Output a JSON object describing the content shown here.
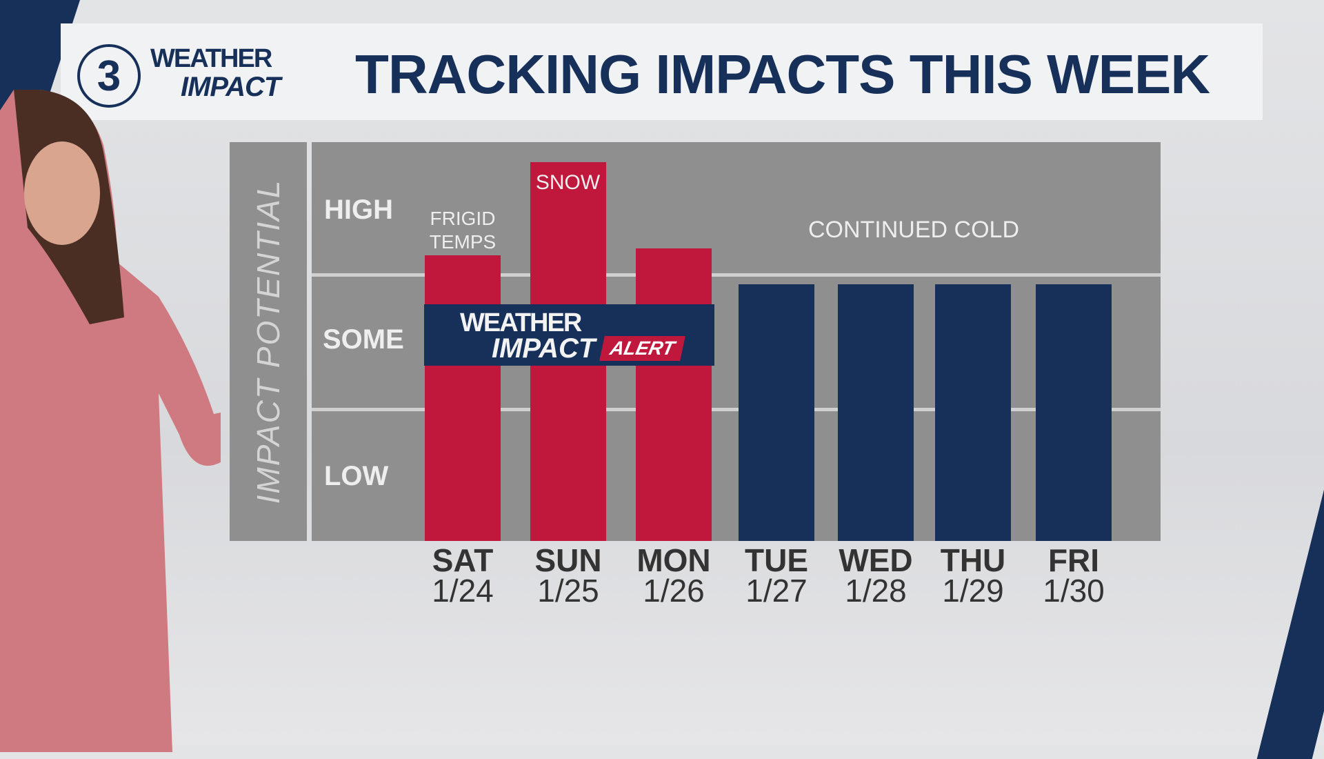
{
  "header": {
    "logo_number": "3",
    "logo_line1": "WEATHER",
    "logo_line2": "IMPACT",
    "title": "TRACKING IMPACTS THIS WEEK"
  },
  "alert_badge": {
    "line1": "WEATHER",
    "line2": "IMPACT",
    "tag": "ALERT"
  },
  "colors": {
    "navy": "#16305a",
    "red": "#c0183c",
    "panel": "#8f8f8f"
  },
  "chart_data": {
    "type": "bar",
    "title": "TRACKING IMPACTS THIS WEEK",
    "ylabel": "IMPACT POTENTIAL",
    "ylim": [
      0,
      3
    ],
    "y_levels": [
      "LOW",
      "SOME",
      "HIGH"
    ],
    "categories": [
      {
        "day": "SAT",
        "date": "1/24"
      },
      {
        "day": "SUN",
        "date": "1/25"
      },
      {
        "day": "MON",
        "date": "1/26"
      },
      {
        "day": "TUE",
        "date": "1/27"
      },
      {
        "day": "WED",
        "date": "1/28"
      },
      {
        "day": "THU",
        "date": "1/29"
      },
      {
        "day": "FRI",
        "date": "1/30"
      }
    ],
    "values": [
      2.15,
      2.85,
      2.2,
      1.93,
      1.93,
      1.93,
      1.93
    ],
    "bar_colors": [
      "#c0183c",
      "#c0183c",
      "#c0183c",
      "#16305a",
      "#16305a",
      "#16305a",
      "#16305a"
    ],
    "annotations": {
      "frigid_line1": "FRIGID",
      "frigid_line2": "TEMPS",
      "snow": "SNOW",
      "continued": "CONTINUED COLD"
    }
  }
}
